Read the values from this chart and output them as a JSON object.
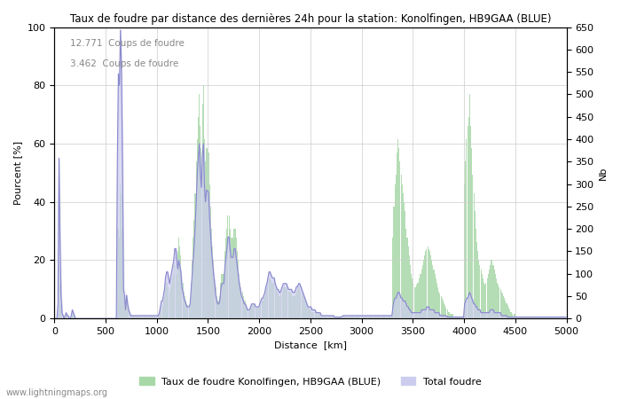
{
  "title": "Taux de foudre par distance des dernières 24h pour la station: Konolfingen, HB9GAA (BLUE)",
  "xlabel": "Distance  [km]",
  "ylabel_left": "Pourcent [%]",
  "ylabel_right": "Nb",
  "annotation_lines": [
    "12.771  Coups de foudre",
    "3.462  Coups de foudre"
  ],
  "legend_green": "Taux de foudre Konolfingen, HB9GAA (BLUE)",
  "legend_blue": "Total foudre",
  "watermark": "www.lightningmaps.org",
  "xlim": [
    0,
    5000
  ],
  "ylim_left": [
    0,
    100
  ],
  "ylim_right": [
    0,
    650
  ],
  "x_ticks": [
    0,
    500,
    1000,
    1500,
    2000,
    2500,
    3000,
    3500,
    4000,
    4500,
    5000
  ],
  "y_ticks_left": [
    0,
    20,
    40,
    60,
    80,
    100
  ],
  "y_ticks_right": [
    0,
    50,
    100,
    150,
    200,
    250,
    300,
    350,
    400,
    450,
    500,
    550,
    600,
    650
  ],
  "bar_color": "#a8d8a8",
  "line_color": "#8888cc",
  "line_fill_color": "#ccccee",
  "background_color": "#ffffff",
  "grid_color": "#cccccc",
  "bin_km": 10,
  "green_bars_nb": [
    0,
    0,
    0,
    10,
    120,
    80,
    30,
    10,
    5,
    0,
    5,
    8,
    5,
    3,
    0,
    0,
    5,
    10,
    8,
    5,
    0,
    0,
    0,
    0,
    0,
    0,
    0,
    0,
    0,
    0,
    0,
    0,
    0,
    0,
    0,
    0,
    0,
    0,
    0,
    0,
    0,
    0,
    0,
    0,
    0,
    0,
    0,
    0,
    0,
    0,
    0,
    0,
    0,
    0,
    0,
    0,
    0,
    0,
    0,
    0,
    0,
    200,
    200,
    180,
    300,
    280,
    200,
    50,
    50,
    20,
    50,
    30,
    20,
    10,
    5,
    5,
    5,
    5,
    5,
    5,
    5,
    5,
    5,
    5,
    5,
    5,
    5,
    5,
    5,
    5,
    5,
    5,
    5,
    5,
    5,
    5,
    5,
    5,
    5,
    5,
    5,
    5,
    10,
    20,
    30,
    30,
    40,
    50,
    70,
    80,
    80,
    70,
    60,
    70,
    80,
    90,
    100,
    120,
    120,
    100,
    150,
    180,
    160,
    140,
    100,
    80,
    60,
    50,
    40,
    30,
    30,
    30,
    40,
    80,
    130,
    180,
    220,
    280,
    350,
    400,
    450,
    500,
    430,
    380,
    480,
    520,
    400,
    350,
    380,
    380,
    370,
    300,
    250,
    200,
    160,
    130,
    100,
    70,
    50,
    40,
    40,
    50,
    80,
    100,
    100,
    100,
    150,
    180,
    200,
    230,
    230,
    200,
    180,
    180,
    180,
    200,
    200,
    180,
    150,
    130,
    100,
    80,
    70,
    60,
    50,
    40,
    40,
    30,
    20,
    20,
    20,
    25,
    30,
    30,
    30,
    30,
    25,
    25,
    25,
    25,
    30,
    35,
    40,
    40,
    45,
    50,
    60,
    70,
    80,
    90,
    90,
    85,
    80,
    80,
    80,
    70,
    65,
    60,
    55,
    50,
    50,
    55,
    60,
    70,
    70,
    70,
    70,
    65,
    60,
    60,
    60,
    55,
    50,
    50,
    50,
    55,
    60,
    65,
    70,
    70,
    60,
    55,
    50,
    45,
    40,
    35,
    30,
    25,
    25,
    20,
    20,
    15,
    15,
    15,
    15,
    10,
    10,
    10,
    10,
    10,
    5,
    5,
    5,
    5,
    5,
    5,
    5,
    5,
    5,
    5,
    5,
    5,
    5,
    3,
    3,
    3,
    3,
    3,
    3,
    3,
    3,
    5,
    5,
    5,
    5,
    5,
    5,
    5,
    5,
    5,
    5,
    5,
    5,
    5,
    5,
    5,
    5,
    5,
    5,
    5,
    5,
    5,
    5,
    5,
    5,
    5,
    5,
    5,
    5,
    5,
    5,
    5,
    5,
    5,
    5,
    5,
    5,
    5,
    5,
    5,
    5,
    5,
    5,
    5,
    5,
    5,
    5,
    5,
    5,
    5,
    180,
    250,
    300,
    320,
    370,
    400,
    380,
    350,
    320,
    300,
    280,
    260,
    240,
    200,
    180,
    160,
    140,
    120,
    100,
    90,
    80,
    70,
    70,
    75,
    80,
    80,
    90,
    100,
    110,
    120,
    130,
    140,
    150,
    155,
    160,
    155,
    150,
    140,
    130,
    120,
    110,
    100,
    90,
    80,
    70,
    60,
    55,
    50,
    45,
    40,
    35,
    30,
    25,
    20,
    15,
    15,
    10,
    10,
    10,
    10,
    5,
    5,
    5,
    5,
    5,
    5,
    5,
    5,
    5,
    5,
    300,
    350,
    400,
    430,
    450,
    500,
    430,
    380,
    320,
    280,
    240,
    200,
    170,
    150,
    130,
    120,
    110,
    100,
    90,
    80,
    75,
    80,
    90,
    100,
    110,
    120,
    130,
    130,
    120,
    110,
    100,
    90,
    80,
    75,
    70,
    65,
    60,
    55,
    50,
    45,
    40,
    35,
    30,
    25,
    20,
    15,
    15,
    10,
    10,
    10,
    5,
    5,
    5,
    5,
    5,
    5,
    5,
    5,
    5,
    5,
    5,
    5,
    5,
    5,
    5,
    5,
    5,
    5,
    5,
    5,
    5,
    5,
    3,
    3,
    3,
    3,
    3,
    3,
    3,
    3,
    3,
    3,
    3,
    3,
    3,
    3,
    3,
    3,
    3,
    3,
    3,
    3,
    3,
    3,
    3,
    3,
    3,
    3,
    3,
    3
  ],
  "blue_pct": [
    0,
    0,
    0,
    5,
    55,
    27,
    8,
    2,
    1,
    0,
    1,
    2,
    1,
    1,
    0,
    0,
    1,
    3,
    2,
    1,
    0,
    0,
    0,
    0,
    0,
    0,
    0,
    0,
    0,
    0,
    0,
    0,
    0,
    0,
    0,
    0,
    0,
    0,
    0,
    0,
    0,
    0,
    0,
    0,
    0,
    0,
    0,
    0,
    0,
    0,
    0,
    0,
    0,
    0,
    0,
    0,
    0,
    0,
    0,
    0,
    0,
    55,
    84,
    80,
    99,
    85,
    53,
    10,
    8,
    3,
    8,
    5,
    3,
    2,
    1,
    1,
    1,
    1,
    1,
    1,
    1,
    1,
    1,
    1,
    1,
    1,
    1,
    1,
    1,
    1,
    1,
    1,
    1,
    1,
    1,
    1,
    1,
    1,
    1,
    1,
    1,
    1,
    2,
    4,
    6,
    6,
    8,
    10,
    14,
    16,
    16,
    14,
    12,
    14,
    16,
    18,
    20,
    24,
    24,
    20,
    17,
    20,
    18,
    16,
    11,
    9,
    7,
    6,
    5,
    4,
    4,
    4,
    5,
    10,
    15,
    20,
    25,
    32,
    40,
    50,
    55,
    60,
    50,
    45,
    56,
    60,
    46,
    40,
    44,
    44,
    43,
    35,
    29,
    23,
    19,
    15,
    12,
    8,
    6,
    5,
    5,
    6,
    10,
    12,
    12,
    12,
    18,
    21,
    24,
    28,
    28,
    24,
    21,
    21,
    21,
    24,
    24,
    21,
    18,
    15,
    12,
    10,
    8,
    7,
    6,
    5,
    5,
    4,
    3,
    3,
    3,
    4,
    5,
    5,
    5,
    5,
    4,
    4,
    4,
    4,
    5,
    6,
    7,
    7,
    8,
    9,
    11,
    12,
    14,
    16,
    16,
    15,
    14,
    14,
    14,
    12,
    11,
    10,
    10,
    9,
    9,
    10,
    11,
    12,
    12,
    12,
    12,
    11,
    10,
    10,
    10,
    10,
    9,
    9,
    9,
    10,
    11,
    11,
    12,
    12,
    11,
    10,
    9,
    8,
    7,
    6,
    5,
    4,
    4,
    4,
    4,
    3,
    3,
    3,
    3,
    2,
    2,
    2,
    2,
    2,
    1,
    1,
    1,
    1,
    1,
    1,
    1,
    1,
    1,
    1,
    1,
    1,
    1,
    0.5,
    0.5,
    0.5,
    0.5,
    0.5,
    0.5,
    0.5,
    0.5,
    1,
    1,
    1,
    1,
    1,
    1,
    1,
    1,
    1,
    1,
    1,
    1,
    1,
    1,
    1,
    1,
    1,
    1,
    1,
    1,
    1,
    1,
    1,
    1,
    1,
    1,
    1,
    1,
    1,
    1,
    1,
    1,
    1,
    1,
    1,
    1,
    1,
    1,
    1,
    1,
    1,
    1,
    1,
    1,
    1,
    1,
    1,
    1,
    1,
    4,
    6,
    7,
    7,
    8,
    9,
    9,
    8,
    7,
    7,
    6,
    6,
    6,
    5,
    4,
    4,
    3,
    3,
    2,
    2,
    2,
    2,
    2,
    2,
    2,
    2,
    2,
    2,
    3,
    3,
    3,
    3,
    3,
    4,
    4,
    4,
    3,
    3,
    3,
    3,
    3,
    2,
    2,
    2,
    2,
    2,
    1,
    1,
    1,
    1,
    1,
    1,
    1,
    0.5,
    0.5,
    0.5,
    0.5,
    0.5,
    0.5,
    0.5,
    0.5,
    0.5,
    0.5,
    0.5,
    0.5,
    0.5,
    0.5,
    0.5,
    0.5,
    0.5,
    5,
    6,
    7,
    7,
    8,
    9,
    8,
    7,
    6,
    5,
    5,
    4,
    4,
    3,
    3,
    3,
    2,
    2,
    2,
    2,
    2,
    2,
    2,
    2,
    2,
    3,
    3,
    3,
    3,
    2,
    2,
    2,
    2,
    2,
    2,
    2,
    1,
    1,
    1,
    1,
    1,
    1,
    0.5,
    0.5,
    0.5,
    0.5,
    0.5,
    0.5,
    0.5,
    0.5,
    0.5,
    0.5,
    0.5,
    0.5,
    0.5,
    0.5,
    0.5,
    0.5,
    0.5,
    0.5,
    0.5,
    0.5,
    0.5,
    0.5,
    0.5,
    0.5,
    0.5,
    0.5,
    0.5,
    0.5,
    0.5,
    0.5,
    0.5,
    0.5,
    0.5,
    0.5,
    0.5,
    0.5,
    0.5,
    0.5,
    0.5,
    0.5,
    0.5,
    0.5,
    0.5,
    0.5,
    0.5,
    0.5,
    0.5,
    0.5,
    0.5,
    0.5,
    0.5,
    0.5,
    0.5,
    0.5,
    0.5,
    0.5,
    0.5,
    0.5
  ]
}
